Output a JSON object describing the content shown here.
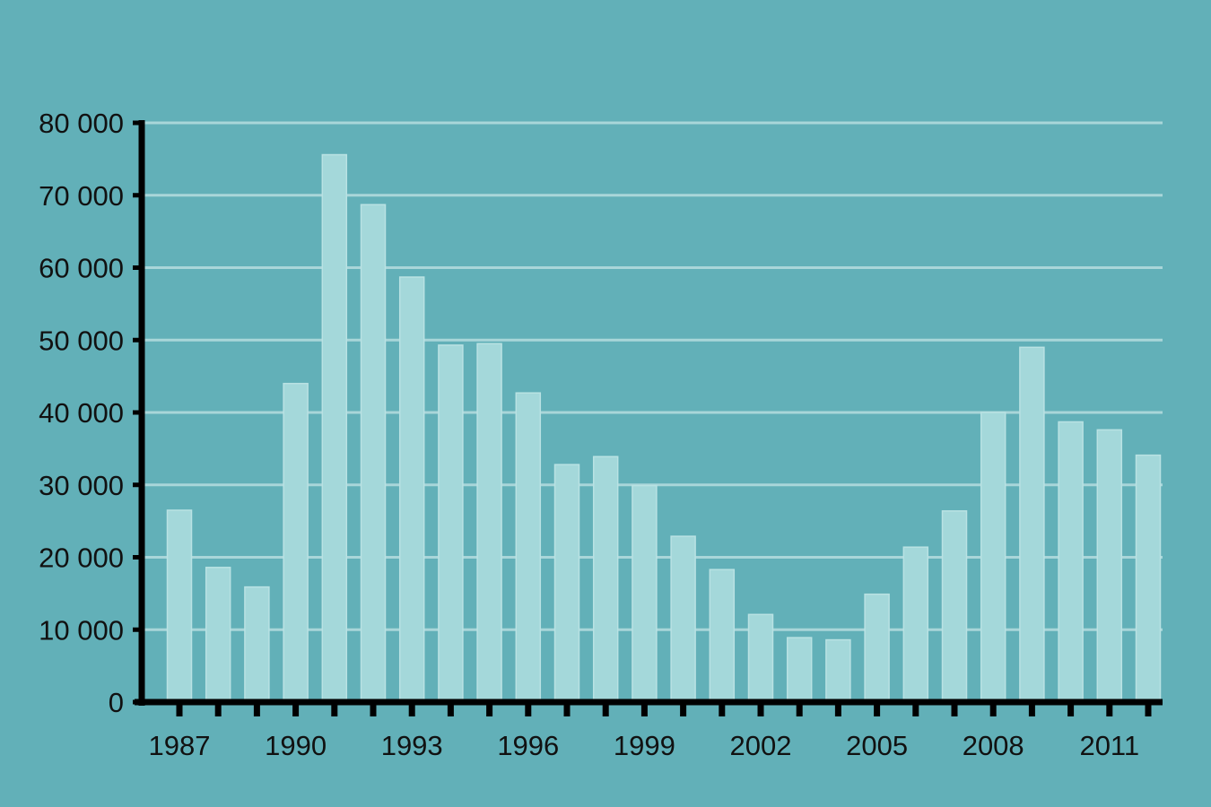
{
  "chart_data": {
    "type": "bar",
    "title": "",
    "xlabel": "",
    "ylabel": "",
    "categories": [
      "1987",
      "1988",
      "1989",
      "1990",
      "1991",
      "1992",
      "1993",
      "1994",
      "1995",
      "1996",
      "1997",
      "1998",
      "1999",
      "2000",
      "2001",
      "2002",
      "2003",
      "2004",
      "2005",
      "2006",
      "2007",
      "2008",
      "2009",
      "2010",
      "2011",
      "2012"
    ],
    "x_tick_labels": [
      "1987",
      "1990",
      "1993",
      "1996",
      "1999",
      "2002",
      "2005",
      "2008",
      "2011"
    ],
    "values": [
      26500,
      18600,
      15900,
      44000,
      75600,
      68700,
      58700,
      49300,
      49500,
      42700,
      32800,
      33900,
      29900,
      22900,
      18300,
      12100,
      8900,
      8600,
      14900,
      21400,
      26400,
      40000,
      49000,
      38700,
      37600,
      34100
    ],
    "ylim": [
      0,
      80000
    ],
    "y_ticks": [
      0,
      10000,
      20000,
      30000,
      40000,
      50000,
      60000,
      70000,
      80000
    ],
    "y_tick_labels": [
      "0",
      "10 000",
      "20 000",
      "30 000",
      "40 000",
      "50 000",
      "60 000",
      "70 000",
      "80 000"
    ],
    "grid": true,
    "legend": "none",
    "colors": {
      "background": "#62b0b8",
      "bar_fill": "#a4d8da",
      "bar_stroke": "#b9e2e3",
      "gridline": "#a9d6d9",
      "axis": "#000000",
      "text": "#111111"
    }
  }
}
